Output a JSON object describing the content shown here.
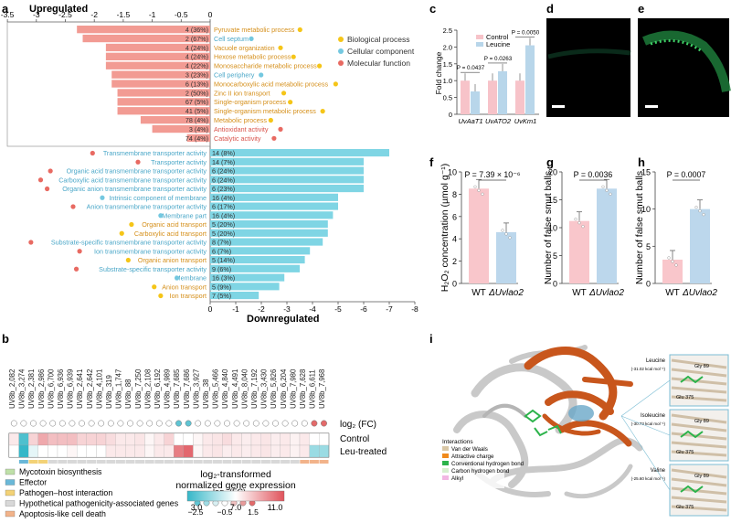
{
  "panel_labels": {
    "a": "a",
    "b": "b",
    "c": "c",
    "d": "d",
    "e": "e",
    "f": "f",
    "g": "g",
    "h": "h",
    "i": "i"
  },
  "colors": {
    "up": "#f29b93",
    "down": "#7fd5e4",
    "bp": "#f5c518",
    "cc": "#74c8e0",
    "mf": "#e86a62",
    "control": "#f7c3c9",
    "leucine": "#b8d6ea",
    "wt": "#f9c6cb",
    "mut": "#bcd7ec",
    "orange": "#c8561c",
    "green": "#2bb34a"
  },
  "chart_data": [
    {
      "id": "a",
      "type": "bar",
      "title_up": "Upregulated",
      "title_down": "Downregulated",
      "top_ticks": [
        "-3.5",
        "-3",
        "-2.5",
        "-2",
        "-1.5",
        "-1",
        "-0.5",
        "0"
      ],
      "bottom_ticks": [
        "0",
        "-1",
        "-2",
        "-3",
        "-4",
        "-5",
        "-6",
        "-7",
        "-8"
      ],
      "legend": [
        "Biological process",
        "Cellular component",
        "Molecular function"
      ],
      "up": [
        {
          "label": "Pyruvate metabolic process",
          "count": "4 (36%)",
          "value": -2.3,
          "cat": "bp"
        },
        {
          "label": "Cell septum",
          "count": "2 (67%)",
          "value": -2.2,
          "cat": "cc"
        },
        {
          "label": "Vacuole organization",
          "count": "4 (24%)",
          "value": -1.8,
          "cat": "bp"
        },
        {
          "label": "Hexose metabolic process",
          "count": "4 (24%)",
          "value": -1.8,
          "cat": "bp"
        },
        {
          "label": "Monosaccharide metabolic process",
          "count": "4 (22%)",
          "value": -1.8,
          "cat": "bp"
        },
        {
          "label": "Cell periphery",
          "count": "3 (23%)",
          "value": -1.7,
          "cat": "cc"
        },
        {
          "label": "Monocarboxylic acid metabolic process",
          "count": "6 (13%)",
          "value": -1.7,
          "cat": "bp"
        },
        {
          "label": "Zinc II ion transport",
          "count": "2 (50%)",
          "value": -1.6,
          "cat": "bp"
        },
        {
          "label": "Single-organism process",
          "count": "67 (5%)",
          "value": -1.6,
          "cat": "bp"
        },
        {
          "label": "Single-organism metabolic process",
          "count": "41 (5%)",
          "value": -1.6,
          "cat": "bp"
        },
        {
          "label": "Metabolic process",
          "count": "78 (4%)",
          "value": -1.2,
          "cat": "bp"
        },
        {
          "label": "Antioxidant activity",
          "count": "3 (4%)",
          "value": -1.0,
          "cat": "mf"
        },
        {
          "label": "Catalytic activity",
          "count": "74 (4%)",
          "value": -0.4,
          "cat": "mf"
        }
      ],
      "down": [
        {
          "label": "Transmembrane transporter activity",
          "count": "14 (8%)",
          "value": -7.0,
          "cat": "mf"
        },
        {
          "label": "Transporter activity",
          "count": "14 (7%)",
          "value": -6.0,
          "cat": "mf"
        },
        {
          "label": "Organic acid transmembrane transporter activity",
          "count": "6 (24%)",
          "value": -6.0,
          "cat": "mf"
        },
        {
          "label": "Carboxylic acid transmembrane transporter activity",
          "count": "6 (24%)",
          "value": -6.0,
          "cat": "mf"
        },
        {
          "label": "Organic anion transmembrane transporter activity",
          "count": "6 (23%)",
          "value": -6.0,
          "cat": "mf"
        },
        {
          "label": "Intrinsic component of membrane",
          "count": "16 (4%)",
          "value": -5.0,
          "cat": "cc"
        },
        {
          "label": "Anion transmembrane transporter activity",
          "count": "6 (17%)",
          "value": -5.0,
          "cat": "mf"
        },
        {
          "label": "Membrane part",
          "count": "16 (4%)",
          "value": -4.8,
          "cat": "cc"
        },
        {
          "label": "Organic acid transport",
          "count": "5 (20%)",
          "value": -4.6,
          "cat": "bp"
        },
        {
          "label": "Carboxylic acid transport",
          "count": "5 (20%)",
          "value": -4.6,
          "cat": "bp"
        },
        {
          "label": "Substrate-specific transmembrane transporter activity",
          "count": "8 (7%)",
          "value": -4.4,
          "cat": "mf"
        },
        {
          "label": "Ion transmembrane transporter activity",
          "count": "6 (7%)",
          "value": -3.9,
          "cat": "mf"
        },
        {
          "label": "Organic anion transport",
          "count": "5 (14%)",
          "value": -3.7,
          "cat": "bp"
        },
        {
          "label": "Substrate-specific transporter activity",
          "count": "9 (6%)",
          "value": -3.5,
          "cat": "mf"
        },
        {
          "label": "Membrane",
          "count": "16 (3%)",
          "value": -2.9,
          "cat": "cc"
        },
        {
          "label": "Anion transport",
          "count": "5 (9%)",
          "value": -2.7,
          "cat": "bp"
        },
        {
          "label": "Ion transport",
          "count": "7 (5%)",
          "value": -1.9,
          "cat": "bp"
        }
      ]
    },
    {
      "id": "b",
      "type": "heatmap",
      "genes": [
        "UV8b_2,082",
        "UV8b_3,274",
        "UV8b_2,381",
        "UV8b_2,986",
        "UV8b_6,700",
        "UV8b_6,936",
        "UV8b_6,939",
        "UV8b_2,641",
        "UV8b_2,642",
        "UV8b_4,101",
        "UV8b_319",
        "UV8b_1,747",
        "UV8b_88",
        "UV8b_7,250",
        "UV8b_2,108",
        "UV8b_6,192",
        "UV8b_4,989",
        "UV8b_7,685",
        "UV8b_7,686",
        "UV8b_3,927",
        "UV8b_38",
        "UV8b_5,466",
        "UV8b_4,840",
        "UV8b_4,491",
        "UV8b_8,040",
        "UV8b_7,192",
        "UV8b_3,430",
        "UV8b_5,826",
        "UV8b_6,204",
        "UV8b_7,980",
        "UV8b_7,628",
        "UV8b_6,611",
        "UV8b_7,968"
      ],
      "logfc": [
        -0.5,
        -0.6,
        -0.5,
        -0.4,
        -0.5,
        -0.5,
        -0.4,
        -0.6,
        -0.5,
        -0.5,
        -0.6,
        -0.5,
        -0.5,
        -0.4,
        -0.5,
        -0.4,
        -0.5,
        -1.5,
        -2.0,
        -0.5,
        -0.4,
        -0.5,
        -0.5,
        -0.5,
        -0.4,
        -0.5,
        -0.5,
        -0.4,
        -0.5,
        -0.4,
        -0.6,
        1.2,
        1.5
      ],
      "control": [
        7.5,
        3.5,
        8,
        9,
        8.5,
        8.5,
        8.5,
        8,
        8,
        8,
        7.8,
        7.5,
        7.5,
        7.6,
        7.2,
        7.5,
        8,
        7,
        7,
        7.2,
        7.5,
        7.6,
        7.8,
        7.5,
        7.4,
        7.5,
        7.6,
        7.4,
        7.5,
        7.3,
        7.5,
        7,
        7
      ],
      "leu": [
        7,
        3,
        6.5,
        7,
        7,
        7,
        7.2,
        7,
        7,
        7,
        7.5,
        7.5,
        7.5,
        7.5,
        7.2,
        7.5,
        7.5,
        10,
        10.5,
        7.2,
        7.5,
        7.6,
        7.4,
        7.5,
        7.4,
        7.5,
        7.6,
        7.4,
        7.5,
        7.3,
        7.5,
        5,
        5
      ],
      "func": [
        "",
        "teal",
        "yellow",
        "yellow",
        "gray",
        "gray",
        "gray",
        "gray",
        "gray",
        "gray",
        "gray",
        "gray",
        "gray",
        "gray",
        "gray",
        "gray",
        "gray",
        "gray",
        "gray",
        "gray",
        "gray",
        "gray",
        "gray",
        "gray",
        "gray",
        "gray",
        "gray",
        "gray",
        "gray",
        "gray",
        "orange",
        "orange",
        "orange"
      ],
      "row_logfc": "log₂ (FC)",
      "row_control": "Control",
      "row_leu": "Leu-treated",
      "legend": [
        {
          "label": "Mycotoxin biosynthesis",
          "color": "#bfe0a8"
        },
        {
          "label": "Effector",
          "color": "#6ab8d8"
        },
        {
          "label": "Pathogen–host interaction",
          "color": "#f3d276"
        },
        {
          "label": "Hypothetical pathogenicity-associated genes",
          "color": "#d8d8d8"
        },
        {
          "label": "Apoptosis-like cell death",
          "color": "#f2b38a"
        }
      ],
      "scale_title_1": "log₂-transformed",
      "scale_title_2": "normalized gene expression",
      "scale_ticks": [
        "3.0",
        "7.0",
        "11.0"
      ],
      "fc_title": "log₂ (FC)",
      "fc_ticks": [
        "−2.5",
        "−0.5",
        "1.5"
      ]
    },
    {
      "id": "c",
      "type": "bar",
      "ylabel": "Fold change",
      "yticks": [
        "0",
        "0.5",
        "1.0",
        "1.5",
        "2.0",
        "2.5"
      ],
      "ylim": [
        0,
        2.5
      ],
      "categories": [
        "UvAaT1",
        "UvATO2",
        "UvKm1"
      ],
      "series": [
        {
          "name": "Control",
          "values": [
            1.0,
            1.0,
            1.0
          ]
        },
        {
          "name": "Leucine",
          "values": [
            0.68,
            1.28,
            2.05
          ]
        }
      ],
      "pvalues": [
        "P = 0.0437",
        "P = 0.0263",
        "P = 0.0050"
      ]
    },
    {
      "id": "f",
      "type": "bar",
      "ylabel": "H₂O₂ concentration (µmol g⁻¹)",
      "yticks": [
        "0",
        "2",
        "4",
        "6",
        "8",
        "10"
      ],
      "ylim": [
        0,
        10
      ],
      "categories": [
        "WT",
        "ΔUvlao2"
      ],
      "values": [
        8.5,
        4.6
      ],
      "pvalue": "P = 7.39 × 10⁻⁶"
    },
    {
      "id": "g",
      "type": "bar",
      "ylabel": "Number of false smut balls",
      "yticks": [
        "0",
        "5",
        "10",
        "15",
        "20"
      ],
      "ylim": [
        0,
        20
      ],
      "categories": [
        "WT",
        "ΔUvlao2"
      ],
      "values": [
        11.2,
        17.0
      ],
      "pvalue": "P = 0.0036"
    },
    {
      "id": "h",
      "type": "bar",
      "ylabel": "Number of false smut balls",
      "yticks": [
        "0",
        "5",
        "10",
        "15"
      ],
      "ylim": [
        0,
        15
      ],
      "categories": [
        "WT",
        "ΔUvlao2"
      ],
      "values": [
        3.2,
        10.0
      ],
      "pvalue": "P = 0.0007"
    }
  ],
  "panel_i": {
    "legend_title": "Interactions",
    "legend": [
      {
        "label": "Van der Waals",
        "color": "#d9c7a6"
      },
      {
        "label": "Attractive charge",
        "color": "#f08a1c"
      },
      {
        "label": "Conventional hydrogen bond",
        "color": "#2bb34a"
      },
      {
        "label": "Carbon hydrogen bond",
        "color": "#d6f0cf"
      },
      {
        "label": "Alkyl",
        "color": "#f2b7e3"
      }
    ],
    "callouts": [
      {
        "name": "Leucine",
        "energy": "(-31.02 kcal mol⁻¹)",
        "res": [
          "Glu 375",
          "Gly 89"
        ]
      },
      {
        "name": "Isoleucine",
        "energy": "(-30.73 kcal mol⁻¹)",
        "res": [
          "Glu 375",
          "Gly 89"
        ]
      },
      {
        "name": "Valine",
        "energy": "(-25.60 kcal mol⁻¹)",
        "res": [
          "Glu 375",
          "Gly 89"
        ]
      }
    ]
  }
}
